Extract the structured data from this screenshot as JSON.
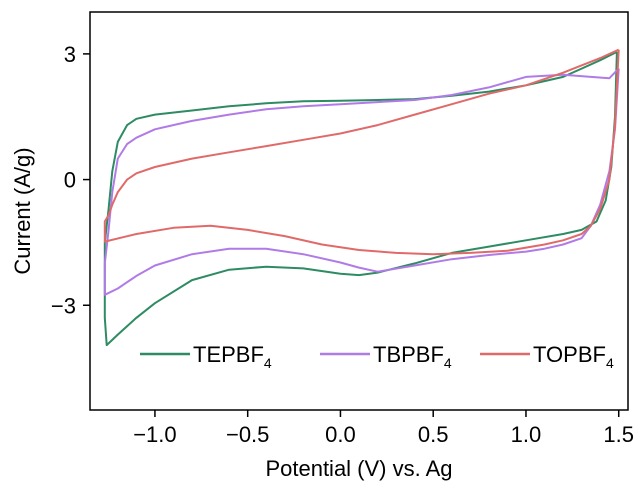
{
  "chart_data": {
    "type": "line",
    "title": "",
    "xlabel": "Potential (V) vs. Ag",
    "ylabel": "Current (A/g)",
    "xlim": [
      -1.35,
      1.55
    ],
    "ylim": [
      -5.5,
      4.0
    ],
    "xticks": [
      -1.0,
      -0.5,
      0.0,
      0.5,
      1.0,
      1.5
    ],
    "xtick_labels": [
      "−1.0",
      "−0.5",
      "0.0",
      "0.5",
      "1.0",
      "1.5"
    ],
    "yticks": [
      -3,
      0,
      3
    ],
    "ytick_labels": [
      "−3",
      "0",
      "3"
    ],
    "grid": false,
    "legend_position": "bottom-inside",
    "series": [
      {
        "name": "TEPBF",
        "name_sub": "4",
        "color": "#2e8b63",
        "points": [
          [
            1.49,
            3.05
          ],
          [
            1.4,
            2.85
          ],
          [
            1.3,
            2.65
          ],
          [
            1.2,
            2.45
          ],
          [
            1.1,
            2.35
          ],
          [
            1.0,
            2.25
          ],
          [
            0.8,
            2.1
          ],
          [
            0.6,
            2.0
          ],
          [
            0.4,
            1.92
          ],
          [
            0.2,
            1.9
          ],
          [
            0.0,
            1.88
          ],
          [
            -0.2,
            1.87
          ],
          [
            -0.4,
            1.82
          ],
          [
            -0.6,
            1.75
          ],
          [
            -0.8,
            1.65
          ],
          [
            -1.0,
            1.55
          ],
          [
            -1.1,
            1.45
          ],
          [
            -1.15,
            1.3
          ],
          [
            -1.2,
            0.9
          ],
          [
            -1.23,
            0.2
          ],
          [
            -1.25,
            -0.7
          ],
          [
            -1.27,
            -1.5
          ],
          [
            -1.27,
            -2.5
          ],
          [
            -1.27,
            -3.3
          ],
          [
            -1.26,
            -3.95
          ],
          [
            -1.2,
            -3.7
          ],
          [
            -1.1,
            -3.3
          ],
          [
            -1.0,
            -2.95
          ],
          [
            -0.8,
            -2.4
          ],
          [
            -0.6,
            -2.15
          ],
          [
            -0.4,
            -2.08
          ],
          [
            -0.2,
            -2.12
          ],
          [
            0.0,
            -2.25
          ],
          [
            0.1,
            -2.28
          ],
          [
            0.2,
            -2.22
          ],
          [
            0.4,
            -2.0
          ],
          [
            0.6,
            -1.75
          ],
          [
            0.8,
            -1.6
          ],
          [
            1.0,
            -1.45
          ],
          [
            1.2,
            -1.3
          ],
          [
            1.3,
            -1.2
          ],
          [
            1.38,
            -1.0
          ],
          [
            1.43,
            -0.5
          ],
          [
            1.46,
            0.3
          ],
          [
            1.48,
            1.5
          ],
          [
            1.49,
            3.05
          ]
        ]
      },
      {
        "name": "TBPBF",
        "name_sub": "4",
        "color": "#b07be6",
        "points": [
          [
            1.5,
            2.65
          ],
          [
            1.45,
            2.42
          ],
          [
            1.35,
            2.45
          ],
          [
            1.2,
            2.5
          ],
          [
            1.0,
            2.45
          ],
          [
            0.8,
            2.2
          ],
          [
            0.6,
            2.02
          ],
          [
            0.4,
            1.9
          ],
          [
            0.2,
            1.85
          ],
          [
            0.0,
            1.8
          ],
          [
            -0.2,
            1.75
          ],
          [
            -0.4,
            1.68
          ],
          [
            -0.6,
            1.55
          ],
          [
            -0.8,
            1.4
          ],
          [
            -1.0,
            1.2
          ],
          [
            -1.1,
            1.0
          ],
          [
            -1.15,
            0.85
          ],
          [
            -1.2,
            0.5
          ],
          [
            -1.23,
            -0.3
          ],
          [
            -1.25,
            -1.2
          ],
          [
            -1.27,
            -2.0
          ],
          [
            -1.27,
            -2.75
          ],
          [
            -1.2,
            -2.6
          ],
          [
            -1.1,
            -2.3
          ],
          [
            -1.0,
            -2.05
          ],
          [
            -0.8,
            -1.78
          ],
          [
            -0.6,
            -1.65
          ],
          [
            -0.4,
            -1.65
          ],
          [
            -0.2,
            -1.78
          ],
          [
            0.0,
            -1.98
          ],
          [
            0.1,
            -2.1
          ],
          [
            0.2,
            -2.2
          ],
          [
            0.4,
            -2.05
          ],
          [
            0.6,
            -1.9
          ],
          [
            0.8,
            -1.8
          ],
          [
            1.0,
            -1.72
          ],
          [
            1.1,
            -1.65
          ],
          [
            1.2,
            -1.55
          ],
          [
            1.3,
            -1.4
          ],
          [
            1.35,
            -1.1
          ],
          [
            1.4,
            -0.6
          ],
          [
            1.45,
            0.2
          ],
          [
            1.48,
            1.2
          ],
          [
            1.5,
            2.65
          ]
        ]
      },
      {
        "name": "TOPBF",
        "name_sub": "4",
        "color": "#e06a6a",
        "points": [
          [
            1.5,
            3.1
          ],
          [
            1.4,
            2.9
          ],
          [
            1.2,
            2.55
          ],
          [
            1.0,
            2.25
          ],
          [
            0.8,
            2.05
          ],
          [
            0.6,
            1.8
          ],
          [
            0.4,
            1.55
          ],
          [
            0.2,
            1.3
          ],
          [
            0.0,
            1.1
          ],
          [
            -0.2,
            0.95
          ],
          [
            -0.4,
            0.8
          ],
          [
            -0.6,
            0.65
          ],
          [
            -0.8,
            0.5
          ],
          [
            -1.0,
            0.3
          ],
          [
            -1.1,
            0.15
          ],
          [
            -1.15,
            0.0
          ],
          [
            -1.2,
            -0.3
          ],
          [
            -1.23,
            -0.6
          ],
          [
            -1.25,
            -0.85
          ],
          [
            -1.27,
            -1.0
          ],
          [
            -1.27,
            -1.48
          ],
          [
            -1.1,
            -1.3
          ],
          [
            -0.9,
            -1.15
          ],
          [
            -0.7,
            -1.1
          ],
          [
            -0.5,
            -1.2
          ],
          [
            -0.3,
            -1.35
          ],
          [
            -0.1,
            -1.55
          ],
          [
            0.1,
            -1.68
          ],
          [
            0.3,
            -1.75
          ],
          [
            0.5,
            -1.78
          ],
          [
            0.7,
            -1.75
          ],
          [
            0.9,
            -1.7
          ],
          [
            1.1,
            -1.55
          ],
          [
            1.2,
            -1.45
          ],
          [
            1.3,
            -1.3
          ],
          [
            1.35,
            -1.1
          ],
          [
            1.4,
            -0.7
          ],
          [
            1.45,
            0.0
          ],
          [
            1.48,
            1.3
          ],
          [
            1.5,
            3.1
          ]
        ]
      }
    ]
  }
}
